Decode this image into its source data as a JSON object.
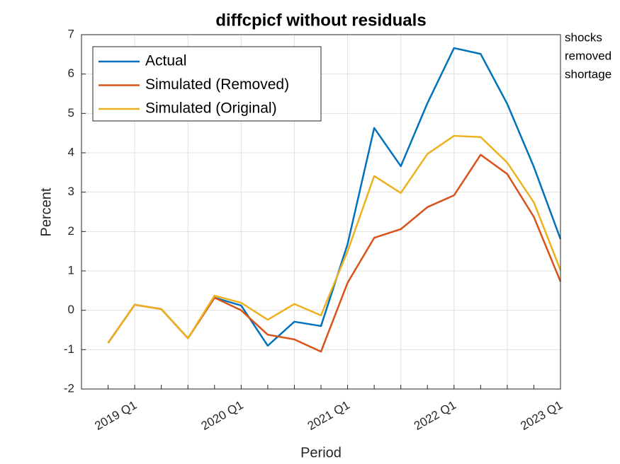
{
  "chart_data": {
    "type": "line",
    "title": "diffcpicf without residuals",
    "xlabel": "Period",
    "ylabel": "Percent",
    "annotation": [
      "shocks",
      "removed",
      "shortage"
    ],
    "categories": [
      null,
      "2019 Q1",
      null,
      null,
      null,
      "2020 Q1",
      null,
      null,
      null,
      "2021 Q1",
      null,
      null,
      null,
      "2022 Q1",
      null,
      null,
      null,
      "2023 Q1"
    ],
    "series": [
      {
        "name": "Actual",
        "color": "#0072BD",
        "values": [
          -0.83,
          0.14,
          0.03,
          -0.71,
          0.32,
          0.12,
          -0.9,
          -0.29,
          -0.4,
          1.68,
          4.63,
          3.66,
          5.26,
          6.66,
          6.51,
          5.24,
          3.64,
          1.81
        ]
      },
      {
        "name": "Simulated (Removed)",
        "color": "#D95319",
        "values": [
          -0.83,
          0.14,
          0.03,
          -0.71,
          0.32,
          0.0,
          -0.62,
          -0.74,
          -1.05,
          0.7,
          1.84,
          2.06,
          2.62,
          2.92,
          3.95,
          3.46,
          2.37,
          0.73
        ]
      },
      {
        "name": "Simulated (Original)",
        "color": "#EDB120",
        "values": [
          -0.83,
          0.14,
          0.03,
          -0.71,
          0.37,
          0.19,
          -0.24,
          0.16,
          -0.13,
          1.5,
          3.41,
          2.98,
          3.97,
          4.43,
          4.4,
          3.75,
          2.74,
          1.02
        ]
      }
    ],
    "ylim": [
      -2,
      7
    ],
    "yticks": [
      -2,
      -1,
      0,
      1,
      2,
      3,
      4,
      5,
      6,
      7
    ],
    "grid": true,
    "legend": "upper left"
  }
}
